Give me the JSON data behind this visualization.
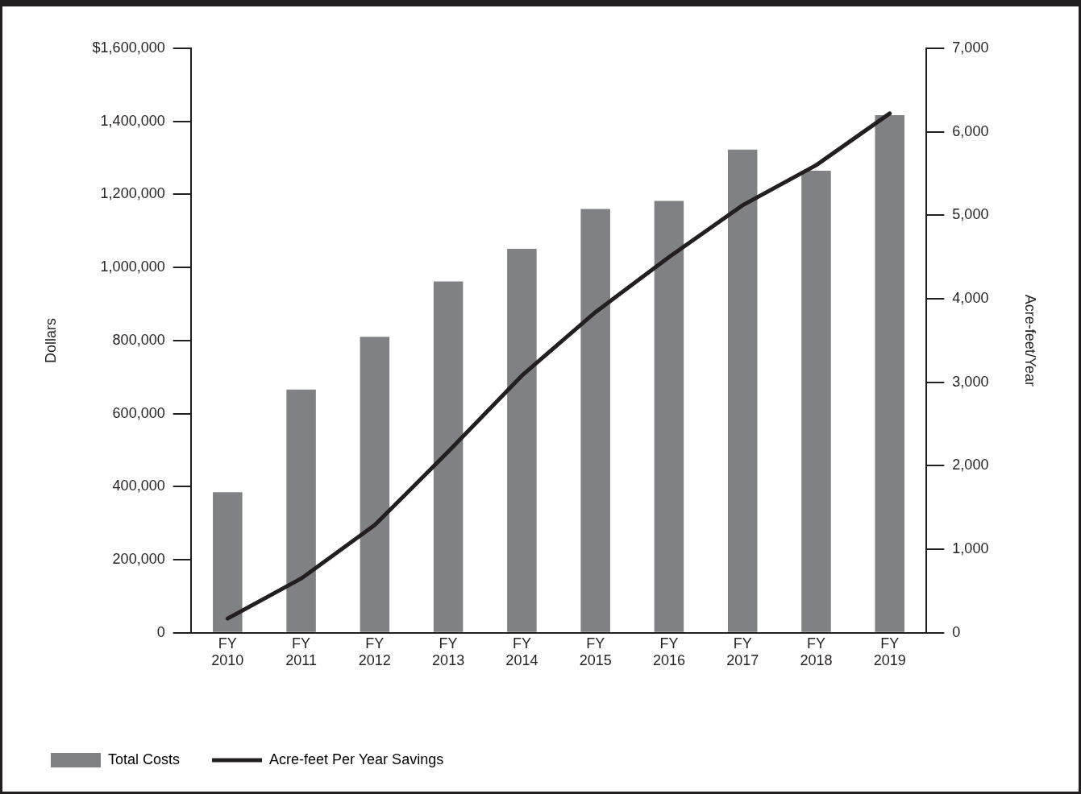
{
  "chart_data": {
    "type": "bar",
    "ylabel": "Dollars",
    "y2label": "Acre-feet/Year",
    "categories": [
      "FY 2010",
      "FY 2011",
      "FY 2012",
      "FY 2013",
      "FY 2014",
      "FY 2015",
      "FY 2016",
      "FY 2017",
      "FY 2018",
      "FY 2019"
    ],
    "series": [
      {
        "name": "Total Costs",
        "color": "#808184",
        "values": [
          385000,
          666000,
          810000,
          962000,
          1051000,
          1160000,
          1182000,
          1323000,
          1265000,
          1417000
        ]
      },
      {
        "name": "Acre-feet Per Year Savings",
        "type": "line",
        "axis": "y2",
        "color": "#231f20",
        "values": [
          170,
          650,
          1290,
          2170,
          3080,
          3840,
          4500,
          5120,
          5600,
          6220
        ]
      }
    ],
    "ylim": [
      0,
      1600000
    ],
    "yticks": [
      {
        "value": 0,
        "label": "0"
      },
      {
        "value": 200000,
        "label": "200,000"
      },
      {
        "value": 400000,
        "label": "400,000"
      },
      {
        "value": 600000,
        "label": "600,000"
      },
      {
        "value": 800000,
        "label": "800,000"
      },
      {
        "value": 1000000,
        "label": "1,000,000"
      },
      {
        "value": 1200000,
        "label": "1,200,000"
      },
      {
        "value": 1400000,
        "label": "1,400,000"
      },
      {
        "value": 1600000,
        "label": "$1,600,000"
      }
    ],
    "y2lim": [
      0,
      7000
    ],
    "y2ticks": [
      {
        "value": 0,
        "label": "0"
      },
      {
        "value": 1000,
        "label": "1,000"
      },
      {
        "value": 2000,
        "label": "2,000"
      },
      {
        "value": 3000,
        "label": "3,000"
      },
      {
        "value": 4000,
        "label": "4,000"
      },
      {
        "value": 5000,
        "label": "5,000"
      },
      {
        "value": 6000,
        "label": "6,000"
      },
      {
        "value": 7000,
        "label": "7,000"
      }
    ],
    "grid": false,
    "legend": "bottom left",
    "marker": "none",
    "line_style": "solid"
  }
}
